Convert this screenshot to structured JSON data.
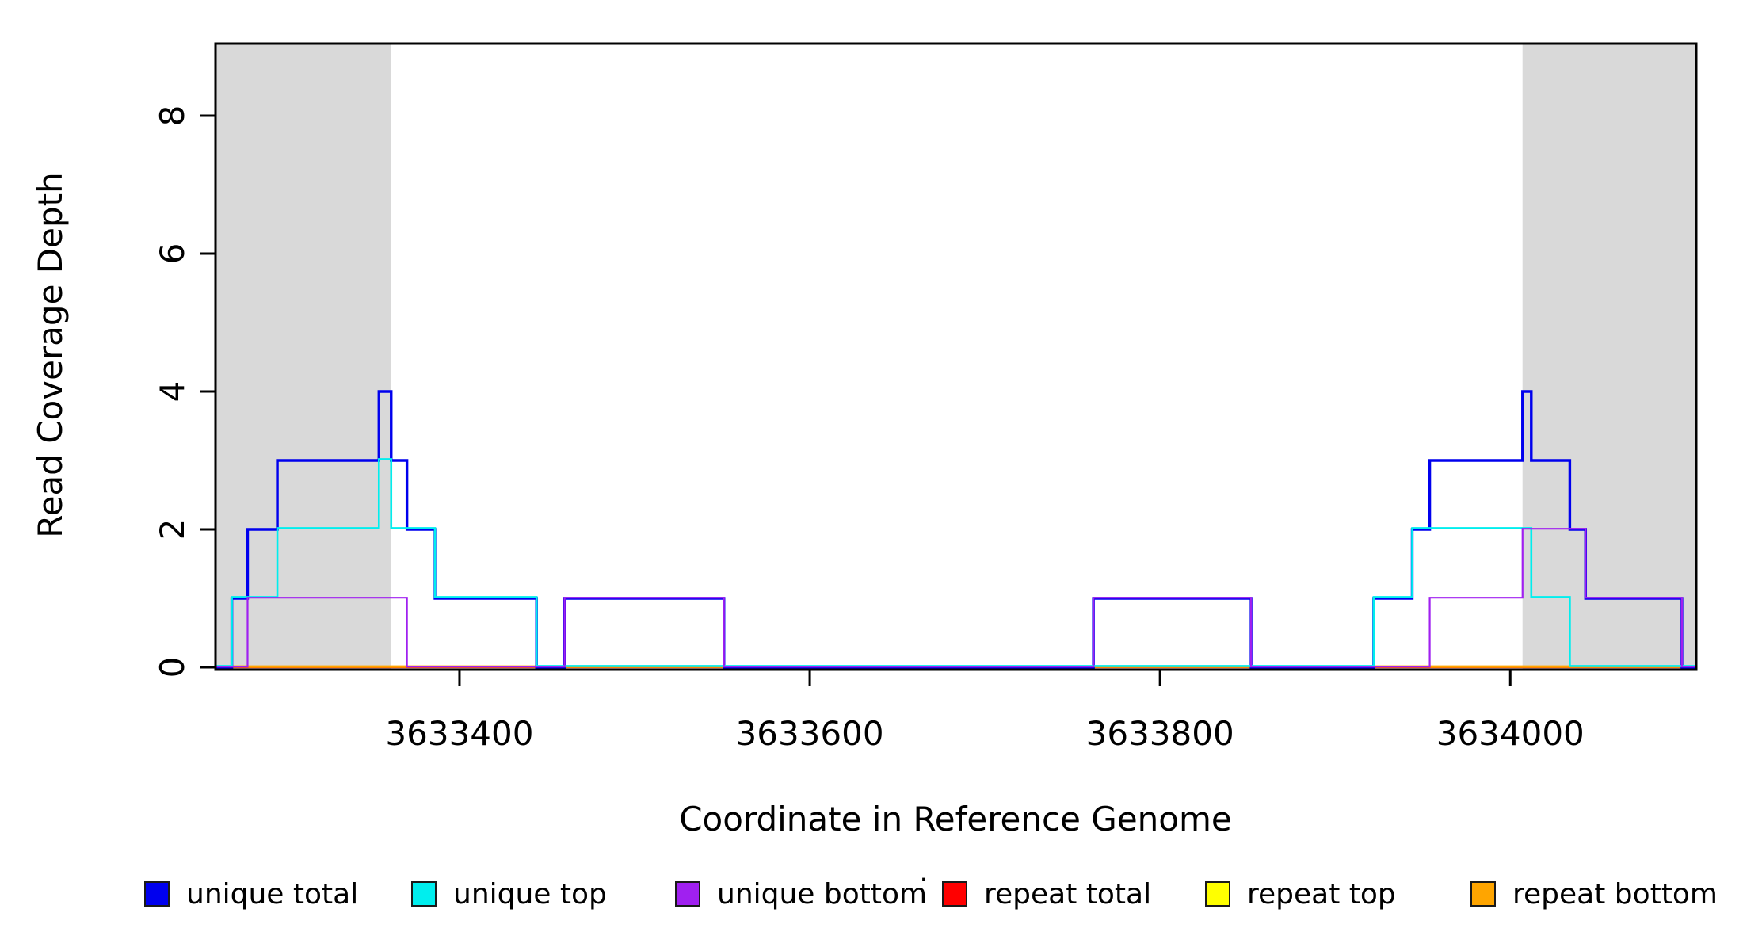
{
  "figure": {
    "background_color": "#ffffff",
    "box_color": "#000000",
    "shaded_region_color": "#d9d9d9"
  },
  "y_axis": {
    "label": "Read Coverage Depth",
    "tick_values": [
      0,
      2,
      4,
      6,
      8
    ],
    "range": [
      0,
      9.05
    ]
  },
  "x_axis": {
    "label": "Coordinate in Reference Genome",
    "tick_values": [
      3633400,
      3633600,
      3633800,
      3634000
    ],
    "range": [
      3633261,
      3634106
    ]
  },
  "shaded_regions": [
    {
      "from": 3633261,
      "to": 3633361
    },
    {
      "from": 3634007,
      "to": 3634106
    }
  ],
  "legend": {
    "separator_dot": "·",
    "items": [
      {
        "key": "unique_total",
        "label": "unique total",
        "color": "#0000EE"
      },
      {
        "key": "unique_top",
        "label": "unique top",
        "color": "#00EEEE"
      },
      {
        "key": "unique_bottom",
        "label": "unique bottom",
        "color": "#A020F0"
      },
      {
        "key": "repeat_total",
        "label": "repeat total",
        "color": "#FF0000"
      },
      {
        "key": "repeat_top",
        "label": "repeat top",
        "color": "#FFFF00"
      },
      {
        "key": "repeat_bottom",
        "label": "repeat bottom",
        "color": "#FFA500"
      }
    ]
  },
  "chart_data": {
    "type": "line",
    "step": true,
    "title": "",
    "xlabel": "Coordinate in Reference Genome",
    "ylabel": "Read Coverage Depth",
    "xlim": [
      3633261,
      3634106
    ],
    "ylim": [
      0,
      9.05
    ],
    "x_ticks": [
      3633400,
      3633600,
      3633800,
      3634000
    ],
    "y_ticks": [
      0,
      2,
      4,
      6,
      8
    ],
    "grid": false,
    "legend_position": "bottom",
    "series": [
      {
        "name": "repeat total",
        "key": "repeat_total",
        "color": "#FF0000",
        "points": [
          [
            3633261,
            0
          ]
        ]
      },
      {
        "name": "repeat top",
        "key": "repeat_top",
        "color": "#FFFF00",
        "points": [
          [
            3633261,
            0
          ]
        ]
      },
      {
        "name": "repeat bottom",
        "key": "repeat_bottom",
        "color": "#FFA500",
        "points": [
          [
            3633261,
            0
          ]
        ]
      },
      {
        "name": "unique total",
        "key": "unique_total",
        "color": "#0000EE",
        "points": [
          [
            3633261,
            0
          ],
          [
            3633270,
            1
          ],
          [
            3633279,
            2
          ],
          [
            3633296,
            3
          ],
          [
            3633354,
            4
          ],
          [
            3633361,
            3
          ],
          [
            3633370,
            2
          ],
          [
            3633386,
            1
          ],
          [
            3633444,
            0
          ],
          [
            3633460,
            1
          ],
          [
            3633551,
            0
          ],
          [
            3633762,
            1
          ],
          [
            3633852,
            0
          ],
          [
            3633922,
            1
          ],
          [
            3633944,
            2
          ],
          [
            3633954,
            3
          ],
          [
            3634007,
            4
          ],
          [
            3634012,
            3
          ],
          [
            3634034,
            2
          ],
          [
            3634043,
            1
          ],
          [
            3634098,
            0
          ]
        ]
      },
      {
        "name": "unique top",
        "key": "unique_top",
        "color": "#00EEEE",
        "points": [
          [
            3633261,
            0
          ],
          [
            3633270,
            1
          ],
          [
            3633296,
            2
          ],
          [
            3633354,
            3
          ],
          [
            3633361,
            2
          ],
          [
            3633386,
            1
          ],
          [
            3633444,
            0
          ],
          [
            3633922,
            1
          ],
          [
            3633944,
            2
          ],
          [
            3634012,
            1
          ],
          [
            3634034,
            0
          ]
        ]
      },
      {
        "name": "unique bottom",
        "key": "unique_bottom",
        "color": "#A020F0",
        "points": [
          [
            3633261,
            0
          ],
          [
            3633279,
            1
          ],
          [
            3633370,
            0
          ],
          [
            3633460,
            1
          ],
          [
            3633551,
            0
          ],
          [
            3633762,
            1
          ],
          [
            3633852,
            0
          ],
          [
            3633954,
            1
          ],
          [
            3634007,
            2
          ],
          [
            3634043,
            1
          ],
          [
            3634098,
            0
          ]
        ]
      }
    ]
  }
}
